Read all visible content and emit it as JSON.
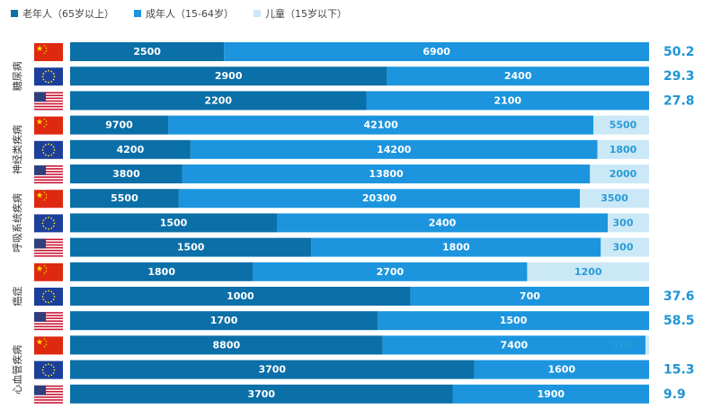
{
  "legend": {
    "elderly": "老年人（65岁以上）",
    "adult": "成年人（15-64岁）",
    "child": "儿童（15岁以下）"
  },
  "colors": {
    "elderly": "#0b6fa8",
    "adult": "#1c95de",
    "child": "#cbe8f7",
    "side_text": "#1f95d3"
  },
  "flags": [
    "cn-flag-icon",
    "eu-flag-icon",
    "us-flag-icon"
  ],
  "chart_data": {
    "type": "bar",
    "orientation": "horizontal",
    "stacked": "percent",
    "series": [
      {
        "name": "老年人（65岁以上）",
        "key": "elderly"
      },
      {
        "name": "成年人（15-64岁）",
        "key": "adult"
      },
      {
        "name": "儿童（15岁以下）",
        "key": "child"
      }
    ],
    "groups": [
      {
        "label": "糖尿病",
        "rows": [
          {
            "region": "cn",
            "elderly": 2500,
            "adult": 6900,
            "child": null,
            "side": "50.2"
          },
          {
            "region": "eu",
            "elderly": 2900,
            "adult": 2400,
            "child": null,
            "side": "29.3"
          },
          {
            "region": "us",
            "elderly": 2200,
            "adult": 2100,
            "child": null,
            "side": "27.8"
          }
        ]
      },
      {
        "label": "神经类疾病",
        "rows": [
          {
            "region": "cn",
            "elderly": 9700,
            "adult": 42100,
            "child": 5500,
            "side": null
          },
          {
            "region": "eu",
            "elderly": 4200,
            "adult": 14200,
            "child": 1800,
            "side": null
          },
          {
            "region": "us",
            "elderly": 3800,
            "adult": 13800,
            "child": 2000,
            "side": null
          }
        ]
      },
      {
        "label": "呼吸系统疾病",
        "rows": [
          {
            "region": "cn",
            "elderly": 5500,
            "adult": 20300,
            "child": 3500,
            "side": null
          },
          {
            "region": "eu",
            "elderly": 1500,
            "adult": 2400,
            "child": 300,
            "side": null
          },
          {
            "region": "us",
            "elderly": 1500,
            "adult": 1800,
            "child": 300,
            "side": null
          }
        ]
      },
      {
        "label": "癌症",
        "rows": [
          {
            "region": "cn",
            "elderly": 1800,
            "adult": 2700,
            "child": 1200,
            "side": null
          },
          {
            "region": "eu",
            "elderly": 1000,
            "adult": 700,
            "child": null,
            "side": "37.6"
          },
          {
            "region": "us",
            "elderly": 1700,
            "adult": 1500,
            "child": null,
            "side": "58.5"
          }
        ]
      },
      {
        "label": "心血管疾病",
        "rows": [
          {
            "region": "cn",
            "elderly": 8800,
            "adult": 7400,
            "child": 100,
            "side": null
          },
          {
            "region": "eu",
            "elderly": 3700,
            "adult": 1600,
            "child": null,
            "side": "15.3"
          },
          {
            "region": "us",
            "elderly": 3700,
            "adult": 1900,
            "child": null,
            "side": "9.9"
          }
        ]
      }
    ]
  }
}
